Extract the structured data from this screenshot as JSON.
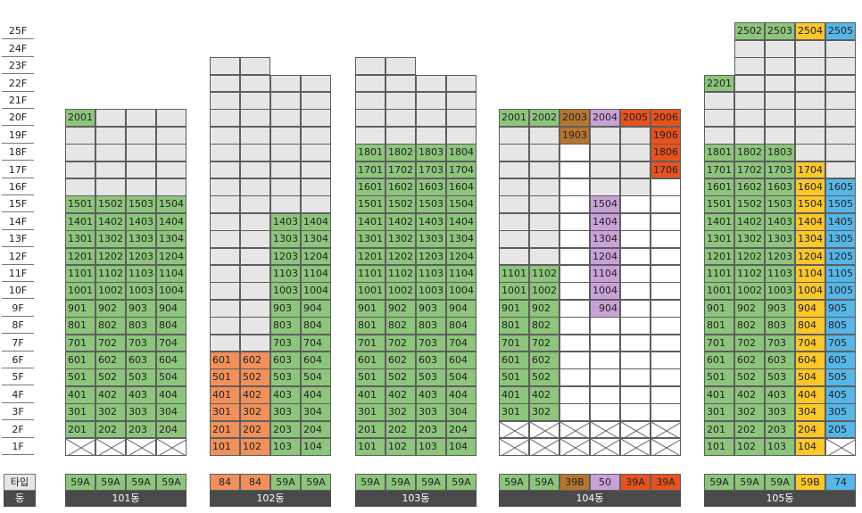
{
  "floor_labels": [
    "25F",
    "24F",
    "23F",
    "22F",
    "21F",
    "20F",
    "19F",
    "18F",
    "17F",
    "16F",
    "15F",
    "14F",
    "13F",
    "12F",
    "11F",
    "10F",
    "9F",
    "8F",
    "7F",
    "6F",
    "5F",
    "4F",
    "3F",
    "2F",
    "1F"
  ],
  "legend": {
    "type_label": "타입",
    "dong_label": "동"
  },
  "colors": {
    "green": "#8dc57c",
    "gray": "#e6e6e6",
    "white": "#ffffff",
    "orange": "#f0905a",
    "brown": "#b5762f",
    "purple": "#c8a2d6",
    "red": "#e8521e",
    "yellow": "#fbc72a",
    "blue": "#56b6e8"
  },
  "buildings": [
    {
      "dong": "101동",
      "types": [
        "59A",
        "59A",
        "59A",
        "59A"
      ],
      "type_colors": [
        "green",
        "green",
        "green",
        "green"
      ],
      "columns": [
        {
          "top": 20,
          "cells": {
            "20": "2001"
          },
          "color_rules": [
            {
              "from": 2,
              "to": 15,
              "color": "green"
            },
            {
              "from": 20,
              "to": 20,
              "color": "green"
            }
          ],
          "blank_color": "gray",
          "no_first": false
        },
        {
          "top": 20,
          "cells": {},
          "color_rules": [
            {
              "from": 2,
              "to": 15,
              "color": "green"
            }
          ],
          "blank_color": "gray"
        },
        {
          "top": 20,
          "cells": {},
          "color_rules": [
            {
              "from": 2,
              "to": 15,
              "color": "green"
            }
          ],
          "blank_color": "gray"
        },
        {
          "top": 20,
          "cells": {},
          "color_rules": [
            {
              "from": 2,
              "to": 15,
              "color": "green"
            }
          ],
          "blank_color": "gray"
        }
      ],
      "unit_suffix": [
        "01",
        "02",
        "03",
        "04"
      ],
      "numbered_range": [
        2,
        15
      ],
      "first_floor_x": true
    },
    {
      "dong": "102동",
      "types": [
        "84",
        "84",
        "59A",
        "59A"
      ],
      "type_colors": [
        "orange",
        "orange",
        "green",
        "green"
      ],
      "columns": [
        {
          "top": 23,
          "color_rules": [
            {
              "from": 1,
              "to": 6,
              "color": "orange"
            }
          ],
          "blank_color": "gray",
          "numbered_range": [
            1,
            6
          ]
        },
        {
          "top": 23,
          "color_rules": [
            {
              "from": 1,
              "to": 6,
              "color": "orange"
            }
          ],
          "blank_color": "gray",
          "numbered_range": [
            1,
            6
          ]
        },
        {
          "top": 22,
          "color_rules": [
            {
              "from": 1,
              "to": 14,
              "color": "green"
            }
          ],
          "blank_color": "gray",
          "numbered_range": [
            1,
            14
          ]
        },
        {
          "top": 22,
          "color_rules": [
            {
              "from": 1,
              "to": 14,
              "color": "green"
            }
          ],
          "blank_color": "gray",
          "numbered_range": [
            1,
            14
          ]
        }
      ],
      "unit_suffix": [
        "01",
        "02",
        "03",
        "04"
      ],
      "first_floor_x": false
    },
    {
      "dong": "103동",
      "types": [
        "59A",
        "59A",
        "59A",
        "59A"
      ],
      "type_colors": [
        "green",
        "green",
        "green",
        "green"
      ],
      "columns": [
        {
          "top": 23,
          "color_rules": [
            {
              "from": 1,
              "to": 18,
              "color": "green"
            }
          ],
          "blank_color": "gray",
          "numbered_range": [
            1,
            18
          ]
        },
        {
          "top": 23,
          "color_rules": [
            {
              "from": 1,
              "to": 18,
              "color": "green"
            }
          ],
          "blank_color": "gray",
          "numbered_range": [
            1,
            18
          ]
        },
        {
          "top": 22,
          "color_rules": [
            {
              "from": 1,
              "to": 18,
              "color": "green"
            }
          ],
          "blank_color": "gray",
          "numbered_range": [
            1,
            18
          ]
        },
        {
          "top": 22,
          "color_rules": [
            {
              "from": 1,
              "to": 18,
              "color": "green"
            }
          ],
          "blank_color": "gray",
          "numbered_range": [
            1,
            18
          ]
        }
      ],
      "unit_suffix": [
        "01",
        "02",
        "03",
        "04"
      ],
      "first_floor_x": false
    },
    {
      "dong": "104동",
      "types": [
        "59A",
        "59A",
        "39B",
        "50",
        "39A",
        "39A"
      ],
      "type_colors": [
        "green",
        "green",
        "brown",
        "purple",
        "red",
        "red"
      ],
      "unit_suffix": [
        "01",
        "02",
        "03",
        "04",
        "05",
        "06"
      ],
      "first_floor_x": true,
      "second_floor_x": true
    },
    {
      "dong": "105동",
      "types": [
        "59A",
        "59A",
        "59A",
        "59B",
        "74"
      ],
      "type_colors": [
        "green",
        "green",
        "green",
        "yellow",
        "blue"
      ],
      "unit_suffix": [
        "01",
        "02",
        "03",
        "04",
        "05"
      ]
    }
  ],
  "cells_text": {
    "b101": {
      "col1": [
        "2001",
        "1501",
        "1401",
        "1301",
        "1201",
        "1101",
        "1001",
        "901",
        "801",
        "701",
        "601",
        "501",
        "401",
        "301",
        "201"
      ],
      "col2": [
        "1502",
        "1402",
        "1302",
        "1202",
        "1102",
        "1002",
        "902",
        "802",
        "702",
        "602",
        "502",
        "402",
        "302",
        "202"
      ],
      "col3": [
        "1503",
        "1403",
        "1303",
        "1203",
        "1103",
        "1003",
        "903",
        "803",
        "703",
        "603",
        "503",
        "403",
        "303",
        "203"
      ],
      "col4": [
        "1504",
        "1404",
        "1304",
        "1204",
        "1104",
        "1004",
        "904",
        "804",
        "704",
        "604",
        "504",
        "404",
        "304",
        "204"
      ]
    },
    "b102": {
      "col1": [
        "601",
        "501",
        "401",
        "301",
        "201",
        "101"
      ],
      "col2": [
        "602",
        "502",
        "402",
        "302",
        "202",
        "102"
      ],
      "col3": [
        "1403",
        "1303",
        "1203",
        "1103",
        "1003",
        "903",
        "803",
        "703",
        "603",
        "503",
        "403",
        "303",
        "203",
        "103"
      ],
      "col4": [
        "1404",
        "1304",
        "1204",
        "1104",
        "1004",
        "904",
        "804",
        "704",
        "604",
        "504",
        "404",
        "304",
        "204",
        "104"
      ]
    },
    "b103": {
      "col1": [
        "1801",
        "1701",
        "1601",
        "1501",
        "1401",
        "1301",
        "1201",
        "1101",
        "1001",
        "901",
        "801",
        "701",
        "601",
        "501",
        "401",
        "301",
        "201",
        "101"
      ],
      "col2": [
        "1802",
        "1702",
        "1602",
        "1502",
        "1402",
        "1302",
        "1202",
        "1102",
        "1002",
        "902",
        "802",
        "702",
        "602",
        "502",
        "402",
        "302",
        "202",
        "102"
      ],
      "col3": [
        "1803",
        "1703",
        "1603",
        "1503",
        "1403",
        "1303",
        "1203",
        "1103",
        "1003",
        "903",
        "803",
        "703",
        "603",
        "503",
        "403",
        "303",
        "203",
        "103"
      ],
      "col4": [
        "1804",
        "1704",
        "1604",
        "1504",
        "1404",
        "1304",
        "1204",
        "1104",
        "1004",
        "904",
        "804",
        "704",
        "604",
        "504",
        "404",
        "304",
        "204",
        "104"
      ]
    },
    "b104": {
      "col1": [
        "2001",
        "1101",
        "1001",
        "901",
        "801",
        "701",
        "601",
        "501",
        "401",
        "301"
      ],
      "col2": [
        "2002",
        "1102",
        "1002",
        "902",
        "802",
        "702",
        "602",
        "502",
        "402",
        "302"
      ],
      "col3": [
        "2003",
        "1903"
      ],
      "col4": [
        "2004",
        "1504",
        "1404",
        "1304",
        "1204",
        "1104",
        "1004",
        "904"
      ],
      "col5": [
        "2005"
      ],
      "col6": [
        "2006",
        "1906",
        "1806",
        "1706"
      ]
    },
    "b105": {
      "col1": [
        "2201",
        "1801",
        "1701",
        "1601",
        "1501",
        "1401",
        "1301",
        "1201",
        "1101",
        "1001",
        "901",
        "801",
        "701",
        "601",
        "501",
        "401",
        "301",
        "201",
        "101"
      ],
      "col2": [
        "2502",
        "1802",
        "1702",
        "1602",
        "1502",
        "1402",
        "1302",
        "1202",
        "1102",
        "1002",
        "902",
        "802",
        "702",
        "602",
        "502",
        "402",
        "302",
        "202",
        "102"
      ],
      "col3": [
        "2503",
        "1803",
        "1703",
        "1603",
        "1503",
        "1403",
        "1303",
        "1203",
        "1103",
        "1003",
        "903",
        "803",
        "703",
        "603",
        "503",
        "403",
        "303",
        "203",
        "103"
      ],
      "col4": [
        "2504",
        "1704",
        "1604",
        "1504",
        "1404",
        "1304",
        "1204",
        "1104",
        "1004",
        "904",
        "804",
        "704",
        "604",
        "504",
        "404",
        "304",
        "204",
        "104"
      ],
      "col5": [
        "2505",
        "1605",
        "1505",
        "1405",
        "1305",
        "1205",
        "1105",
        "1005",
        "905",
        "805",
        "705",
        "605",
        "505",
        "405",
        "305",
        "205"
      ]
    }
  }
}
